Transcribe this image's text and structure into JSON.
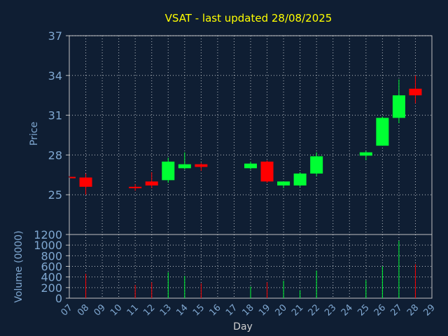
{
  "chart_data": {
    "type": "candlestick",
    "title": "VSAT - last updated 28/08/2025",
    "price_panel": {
      "ylabel": "Price",
      "ylim": [
        22,
        37
      ],
      "yticks": [
        25,
        28,
        31,
        34,
        37
      ]
    },
    "volume_panel": {
      "ylabel": "Volume (0000)",
      "ylim": [
        0,
        1200
      ],
      "yticks": [
        0,
        200,
        400,
        600,
        800,
        1000,
        1200
      ]
    },
    "xlabel": "Day",
    "x_ticks": [
      "07",
      "08",
      "09",
      "10",
      "11",
      "12",
      "13",
      "14",
      "15",
      "16",
      "17",
      "18",
      "19",
      "20",
      "21",
      "22",
      "23",
      "24",
      "25",
      "26",
      "27",
      "28",
      "29"
    ],
    "candles": [
      {
        "day": "07",
        "open": 26.35,
        "high": 26.4,
        "low": 26.3,
        "close": 26.3,
        "volume": 0
      },
      {
        "day": "08",
        "open": 26.3,
        "high": 26.6,
        "low": 25.0,
        "close": 25.6,
        "volume": 460
      },
      {
        "day": "11",
        "open": 25.6,
        "high": 25.8,
        "low": 25.3,
        "close": 25.5,
        "volume": 250
      },
      {
        "day": "12",
        "open": 26.0,
        "high": 26.7,
        "low": 25.5,
        "close": 25.7,
        "volume": 300
      },
      {
        "day": "13",
        "open": 26.1,
        "high": 27.8,
        "low": 25.9,
        "close": 27.5,
        "volume": 490
      },
      {
        "day": "14",
        "open": 27.0,
        "high": 28.2,
        "low": 26.9,
        "close": 27.3,
        "volume": 420
      },
      {
        "day": "15",
        "open": 27.3,
        "high": 27.4,
        "low": 26.8,
        "close": 27.1,
        "volume": 280
      },
      {
        "day": "18",
        "open": 27.0,
        "high": 27.5,
        "low": 26.9,
        "close": 27.35,
        "volume": 220
      },
      {
        "day": "19",
        "open": 27.5,
        "high": 27.6,
        "low": 25.9,
        "close": 26.0,
        "volume": 300
      },
      {
        "day": "20",
        "open": 25.7,
        "high": 26.0,
        "low": 25.5,
        "close": 26.0,
        "volume": 330
      },
      {
        "day": "21",
        "open": 25.7,
        "high": 26.7,
        "low": 25.6,
        "close": 26.6,
        "volume": 150
      },
      {
        "day": "22",
        "open": 26.6,
        "high": 28.2,
        "low": 26.4,
        "close": 27.9,
        "volume": 520
      },
      {
        "day": "25",
        "open": 27.95,
        "high": 28.3,
        "low": 27.6,
        "close": 28.2,
        "volume": 340
      },
      {
        "day": "26",
        "open": 28.7,
        "high": 30.9,
        "low": 28.7,
        "close": 30.8,
        "volume": 600
      },
      {
        "day": "27",
        "open": 30.8,
        "high": 33.7,
        "low": 30.4,
        "close": 32.5,
        "volume": 1080
      },
      {
        "day": "28",
        "open": 33.0,
        "high": 34.0,
        "low": 31.9,
        "close": 32.5,
        "volume": 640
      }
    ],
    "colors": {
      "background": "#0f1e33",
      "up": "#00ff33",
      "down": "#ff0000",
      "title": "#ffff00",
      "axis_text": "#7fa7d0",
      "grid": "#ffffff",
      "frame": "#c0c0c0"
    },
    "grid": true
  }
}
